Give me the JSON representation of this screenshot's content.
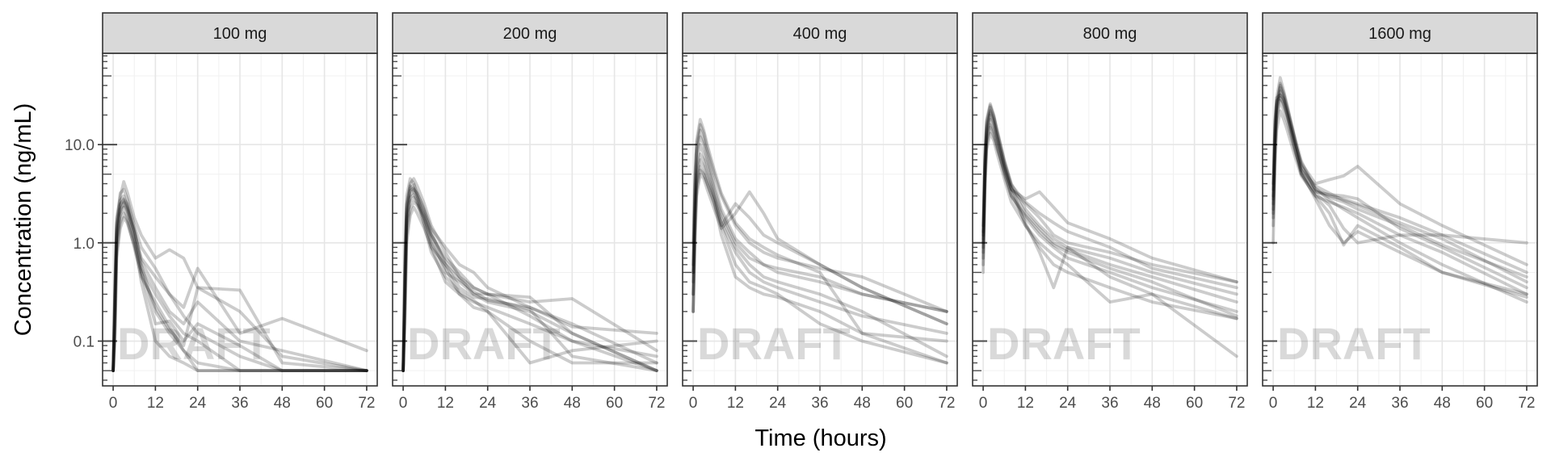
{
  "chart_data": {
    "type": "line",
    "facet_labels": [
      "100 mg",
      "200 mg",
      "400 mg",
      "800 mg",
      "1600 mg"
    ],
    "xlabel": "Time (hours)",
    "ylabel": "Concentration (ng/mL)",
    "x_ticks": [
      0,
      12,
      24,
      36,
      48,
      60,
      72
    ],
    "x_tick_labels": [
      "0",
      "12",
      "24",
      "36",
      "48",
      "60",
      "72"
    ],
    "xlim": [
      -3,
      75
    ],
    "y_scale": "log10",
    "y_ticks": [
      0.1,
      1,
      10
    ],
    "y_tick_labels": [
      "0.1",
      "1.0",
      "10.0"
    ],
    "ylim": [
      0.035,
      85
    ],
    "grid": true,
    "log_rug_ticks": true,
    "watermark": "DRAFT",
    "line_color": "#000000",
    "line_opacity": 0.2,
    "times": [
      0,
      0.5,
      1,
      2,
      3,
      4,
      6,
      8,
      12,
      16,
      20,
      24,
      36,
      48,
      72
    ],
    "facets": [
      {
        "label": "100 mg",
        "subjects": [
          [
            0.05,
            0.2,
            1.5,
            3.2,
            3.5,
            2.8,
            1.5,
            0.9,
            0.55,
            0.3,
            0.18,
            0.12,
            0.07,
            0.05,
            0.05
          ],
          [
            0.05,
            0.4,
            1.8,
            2.9,
            4.2,
            3.3,
            1.8,
            1.2,
            0.7,
            0.85,
            0.7,
            0.35,
            0.33,
            0.06,
            0.05
          ],
          [
            0.05,
            0.15,
            0.9,
            2.0,
            2.6,
            2.2,
            1.3,
            0.7,
            0.45,
            0.3,
            0.22,
            0.55,
            0.12,
            0.17,
            0.08
          ],
          [
            0.05,
            0.3,
            1.3,
            2.4,
            2.8,
            2.5,
            1.4,
            0.6,
            0.2,
            0.12,
            0.08,
            0.05,
            0.05,
            0.05,
            0.05
          ],
          [
            0.05,
            0.25,
            1.1,
            1.9,
            2.3,
            1.8,
            1.0,
            0.5,
            0.15,
            0.16,
            0.1,
            0.15,
            0.09,
            0.05,
            0.05
          ],
          [
            0.05,
            0.1,
            0.8,
            1.6,
            2.0,
            1.7,
            0.9,
            0.45,
            0.25,
            0.14,
            0.08,
            0.06,
            0.05,
            0.05,
            0.05
          ],
          [
            0.05,
            0.35,
            1.6,
            2.7,
            3.0,
            2.4,
            1.2,
            0.55,
            0.3,
            0.18,
            0.12,
            0.1,
            0.05,
            0.05,
            0.05
          ],
          [
            0.05,
            0.2,
            1.2,
            2.2,
            2.5,
            2.1,
            1.1,
            0.4,
            0.1,
            0.07,
            0.06,
            0.05,
            0.05,
            0.05,
            0.05
          ],
          [
            0.05,
            0.3,
            1.4,
            2.5,
            2.7,
            2.3,
            1.3,
            0.65,
            0.35,
            0.2,
            0.15,
            0.25,
            0.1,
            0.08,
            0.05
          ],
          [
            0.05,
            0.12,
            0.7,
            1.4,
            1.8,
            1.6,
            0.95,
            0.5,
            0.22,
            0.13,
            0.09,
            0.35,
            0.2,
            0.07,
            0.05
          ]
        ]
      },
      {
        "label": "200 mg",
        "subjects": [
          [
            0.05,
            0.5,
            2.5,
            4.0,
            4.5,
            3.8,
            2.5,
            1.5,
            0.8,
            0.45,
            0.3,
            0.25,
            0.2,
            0.12,
            0.05
          ],
          [
            0.05,
            0.3,
            1.8,
            3.0,
            3.5,
            3.2,
            2.2,
            1.4,
            0.9,
            0.6,
            0.5,
            0.35,
            0.22,
            0.15,
            0.06
          ],
          [
            0.05,
            0.8,
            3.0,
            4.5,
            4.0,
            3.0,
            1.6,
            0.9,
            0.4,
            0.3,
            0.25,
            0.22,
            0.15,
            0.1,
            0.07
          ],
          [
            0.05,
            0.2,
            1.2,
            2.2,
            2.6,
            2.4,
            1.7,
            1.2,
            0.7,
            0.5,
            0.35,
            0.3,
            0.28,
            0.12,
            0.05
          ],
          [
            0.05,
            0.4,
            2.0,
            3.4,
            3.6,
            3.0,
            2.0,
            1.3,
            0.6,
            0.35,
            0.28,
            0.27,
            0.21,
            0.07,
            0.05
          ],
          [
            0.05,
            0.6,
            2.4,
            3.8,
            3.3,
            2.7,
            1.5,
            0.8,
            0.45,
            0.32,
            0.26,
            0.2,
            0.06,
            0.08,
            0.1
          ],
          [
            0.05,
            0.25,
            1.5,
            2.6,
            2.9,
            2.5,
            1.8,
            1.0,
            0.55,
            0.3,
            0.22,
            0.2,
            0.1,
            0.06,
            0.06
          ],
          [
            0.05,
            0.35,
            1.7,
            2.9,
            3.1,
            2.6,
            1.9,
            1.1,
            0.5,
            0.4,
            0.3,
            0.3,
            0.25,
            0.27,
            0.08
          ],
          [
            0.05,
            0.45,
            2.2,
            3.6,
            3.9,
            3.2,
            2.1,
            1.2,
            0.65,
            0.45,
            0.35,
            0.3,
            0.18,
            0.1,
            0.05
          ],
          [
            0.05,
            0.15,
            1.0,
            1.9,
            2.3,
            2.0,
            1.4,
            0.9,
            0.6,
            0.42,
            0.32,
            0.26,
            0.22,
            0.14,
            0.12
          ]
        ]
      },
      {
        "label": "400 mg",
        "subjects": [
          [
            0.5,
            3.0,
            8.0,
            12.0,
            10.0,
            7.0,
            3.5,
            2.0,
            1.0,
            0.7,
            0.6,
            0.5,
            0.4,
            0.3,
            0.2
          ],
          [
            0.2,
            1.5,
            4.0,
            6.0,
            5.0,
            4.0,
            2.5,
            1.5,
            2.5,
            1.8,
            1.2,
            1.0,
            0.6,
            0.35,
            0.15
          ],
          [
            1.0,
            5.0,
            10.0,
            16.0,
            13.0,
            9.0,
            5.0,
            3.0,
            1.5,
            1.0,
            0.8,
            0.7,
            0.55,
            0.45,
            0.2
          ],
          [
            0.3,
            2.0,
            5.0,
            8.0,
            7.0,
            5.0,
            3.0,
            1.8,
            0.9,
            0.6,
            0.45,
            0.4,
            0.3,
            0.2,
            0.07
          ],
          [
            0.2,
            1.0,
            3.0,
            5.0,
            4.5,
            3.5,
            2.2,
            1.4,
            2.0,
            3.3,
            2.0,
            1.1,
            0.6,
            0.35,
            0.15
          ],
          [
            0.5,
            2.5,
            6.0,
            10.0,
            8.0,
            6.0,
            3.0,
            1.5,
            0.6,
            0.4,
            0.35,
            0.3,
            0.15,
            0.1,
            0.06
          ],
          [
            0.3,
            1.8,
            4.5,
            7.0,
            6.0,
            4.5,
            2.8,
            1.6,
            0.8,
            0.5,
            0.4,
            0.35,
            0.25,
            0.18,
            0.12
          ],
          [
            0.4,
            3.5,
            9.0,
            14.0,
            11.0,
            8.0,
            4.0,
            2.2,
            1.1,
            0.8,
            0.6,
            0.55,
            0.45,
            0.3,
            0.2
          ],
          [
            0.2,
            1.2,
            3.5,
            5.5,
            5.0,
            4.0,
            2.6,
            1.2,
            0.45,
            0.35,
            0.3,
            0.28,
            0.2,
            0.12,
            0.06
          ],
          [
            0.6,
            4.0,
            11.0,
            18.0,
            14.0,
            10.0,
            5.5,
            3.2,
            1.6,
            1.1,
            0.9,
            0.75,
            0.5,
            0.12,
            0.1
          ]
        ]
      },
      {
        "label": "800 mg",
        "subjects": [
          [
            1.0,
            6.0,
            15.0,
            22.0,
            18.0,
            12.0,
            6.0,
            3.5,
            2.5,
            1.8,
            1.2,
            1.0,
            0.8,
            0.6,
            0.4
          ],
          [
            0.8,
            5.0,
            12.0,
            18.0,
            14.0,
            10.0,
            5.0,
            3.0,
            1.8,
            1.2,
            0.9,
            0.7,
            0.5,
            0.35,
            0.2
          ],
          [
            1.5,
            8.0,
            18.0,
            26.0,
            20.0,
            14.0,
            7.0,
            4.0,
            2.2,
            1.5,
            1.1,
            0.9,
            0.7,
            0.5,
            0.3
          ],
          [
            0.6,
            4.0,
            10.0,
            15.0,
            12.0,
            9.0,
            5.5,
            3.5,
            2.8,
            3.3,
            2.3,
            1.6,
            1.1,
            0.7,
            0.4
          ],
          [
            1.2,
            7.0,
            16.0,
            24.0,
            19.0,
            13.0,
            6.5,
            3.8,
            1.5,
            0.9,
            0.6,
            0.5,
            0.35,
            0.25,
            0.17
          ],
          [
            0.9,
            5.5,
            13.0,
            20.0,
            16.0,
            11.0,
            5.8,
            3.2,
            1.6,
            0.8,
            0.35,
            0.9,
            0.45,
            0.3,
            0.07
          ],
          [
            1.1,
            6.5,
            14.0,
            21.0,
            17.0,
            12.0,
            6.2,
            3.6,
            2.0,
            1.4,
            1.0,
            0.85,
            0.6,
            0.45,
            0.25
          ],
          [
            0.7,
            4.5,
            11.0,
            16.0,
            13.0,
            9.5,
            5.2,
            3.0,
            1.9,
            1.3,
            0.95,
            0.8,
            0.55,
            0.4,
            0.18
          ],
          [
            1.3,
            7.5,
            17.0,
            25.0,
            19.5,
            13.5,
            6.8,
            3.9,
            2.6,
            2.0,
            1.6,
            1.3,
            0.9,
            0.55,
            0.35
          ],
          [
            0.5,
            3.5,
            9.0,
            13.0,
            11.0,
            8.0,
            4.5,
            2.6,
            1.5,
            1.0,
            0.75,
            0.6,
            0.25,
            0.3,
            0.17
          ]
        ]
      },
      {
        "label": "1600 mg",
        "subjects": [
          [
            3.0,
            15.0,
            30.0,
            48.0,
            35.0,
            25.0,
            12.0,
            6.0,
            3.5,
            3.0,
            2.8,
            2.5,
            1.8,
            1.2,
            0.5
          ],
          [
            2.0,
            10.0,
            22.0,
            35.0,
            28.0,
            20.0,
            10.0,
            5.0,
            3.0,
            2.6,
            2.3,
            2.0,
            1.2,
            0.8,
            0.3
          ],
          [
            4.0,
            18.0,
            28.0,
            30.0,
            26.0,
            20.0,
            11.0,
            6.5,
            4.0,
            4.4,
            4.8,
            6.0,
            2.5,
            1.5,
            0.6
          ],
          [
            1.5,
            8.0,
            18.0,
            28.0,
            22.0,
            17.0,
            9.0,
            5.5,
            3.2,
            2.4,
            1.4,
            1.0,
            1.2,
            1.2,
            1.0
          ],
          [
            2.5,
            12.0,
            25.0,
            40.0,
            32.0,
            23.0,
            11.5,
            6.2,
            3.6,
            2.7,
            2.2,
            1.8,
            1.0,
            0.6,
            0.25
          ],
          [
            1.0,
            6.0,
            14.0,
            22.0,
            18.0,
            14.0,
            8.0,
            4.8,
            3.0,
            2.0,
            0.95,
            1.5,
            0.9,
            0.5,
            0.3
          ],
          [
            3.5,
            16.0,
            30.0,
            32.0,
            29.0,
            22.0,
            12.0,
            5.5,
            3.8,
            3.2,
            2.7,
            2.4,
            1.6,
            1.1,
            0.4
          ],
          [
            2.2,
            11.0,
            24.0,
            38.0,
            30.0,
            21.0,
            10.5,
            5.2,
            2.8,
            1.5,
            1.0,
            1.3,
            0.8,
            0.5,
            0.28
          ],
          [
            2.8,
            13.0,
            26.0,
            42.0,
            33.0,
            24.0,
            12.5,
            6.8,
            3.4,
            2.9,
            2.6,
            2.2,
            1.5,
            0.95,
            0.45
          ],
          [
            1.8,
            9.0,
            20.0,
            32.0,
            25.0,
            19.0,
            9.5,
            5.0,
            3.3,
            3.1,
            3.0,
            2.8,
            1.4,
            0.9,
            0.35
          ]
        ]
      }
    ]
  }
}
